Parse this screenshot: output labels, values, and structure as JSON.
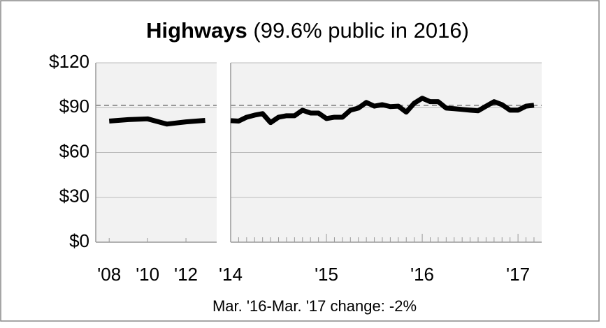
{
  "chart_data": {
    "type": "line",
    "title_bold": "Highways",
    "title_rest": " (99.6% public in 2016)",
    "note": "Mar. '16-Mar. '17 change: -2%",
    "color": "#000000",
    "reference_line": 91.5,
    "ylim": [
      0,
      120
    ],
    "yticks": [
      {
        "value": 0,
        "label": "$0"
      },
      {
        "value": 30,
        "label": "$30"
      },
      {
        "value": 60,
        "label": "$60"
      },
      {
        "value": 90,
        "label": "$90"
      },
      {
        "value": 120,
        "label": "$120"
      }
    ],
    "grid": true,
    "panels": [
      {
        "x": [
          2008,
          2009,
          2010,
          2011,
          2012,
          2013
        ],
        "values": [
          81,
          82,
          82.5,
          79,
          80.5,
          81.5
        ],
        "xlim": [
          2007.3,
          2013.6
        ],
        "xticks": [
          {
            "value": 2008,
            "label": "'08"
          },
          {
            "value": 2010,
            "label": "'10"
          },
          {
            "value": 2012,
            "label": "'12"
          }
        ]
      },
      {
        "categories": [
          "'14",
          null,
          null,
          null,
          null,
          null,
          null,
          null,
          null,
          null,
          null,
          null,
          "'15",
          null,
          null,
          null,
          null,
          null,
          null,
          null,
          null,
          null,
          null,
          null,
          "'16",
          null,
          null,
          null,
          null,
          null,
          null,
          null,
          null,
          null,
          null,
          null,
          "'17",
          null,
          null
        ],
        "values": [
          81.3,
          81,
          83.6,
          85,
          86,
          80,
          83.6,
          84.6,
          84.6,
          88.3,
          86.4,
          86.4,
          82.7,
          83.6,
          83.6,
          88.3,
          89.7,
          93.5,
          91,
          92,
          90.7,
          91,
          87,
          93,
          96.3,
          94,
          94,
          89.7,
          89.3,
          88.8,
          88.3,
          87.9,
          91,
          94,
          92,
          88.3,
          88.3,
          91,
          91.6
        ]
      }
    ]
  }
}
